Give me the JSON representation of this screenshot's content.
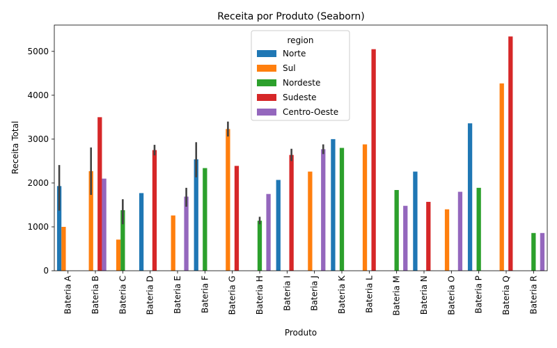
{
  "chart_data": {
    "type": "bar",
    "title": "Receita por Produto (Seaborn)",
    "xlabel": "Produto",
    "ylabel": "Receita Total",
    "ylim": [
      0,
      5600
    ],
    "yticks": [
      0,
      1000,
      2000,
      3000,
      4000,
      5000
    ],
    "grid": false,
    "legend_title": "region",
    "legend_position": "top-center",
    "categories": [
      "Bateria A",
      "Bateria B",
      "Bateria C",
      "Bateria D",
      "Bateria E",
      "Bateria F",
      "Bateria G",
      "Bateria H",
      "Bateria I",
      "Bateria J",
      "Bateria K",
      "Bateria L",
      "Bateria M",
      "Bateria N",
      "Bateria O",
      "Bateria P",
      "Bateria Q",
      "Bateria R"
    ],
    "series": [
      {
        "name": "Norte",
        "color": "#1f77b4",
        "values": [
          1930,
          null,
          null,
          1770,
          null,
          2540,
          null,
          null,
          2070,
          null,
          3000,
          null,
          null,
          2260,
          null,
          3360,
          null,
          null
        ],
        "err_low": [
          1370,
          null,
          null,
          null,
          null,
          2130,
          null,
          null,
          null,
          null,
          null,
          null,
          null,
          null,
          null,
          null,
          null,
          null
        ],
        "err_high": [
          2410,
          null,
          null,
          null,
          null,
          2930,
          null,
          null,
          null,
          null,
          null,
          null,
          null,
          null,
          null,
          null,
          null,
          null
        ]
      },
      {
        "name": "Sul",
        "color": "#ff7f0e",
        "values": [
          1000,
          2270,
          710,
          null,
          1260,
          null,
          3230,
          null,
          null,
          2260,
          null,
          2880,
          null,
          null,
          1400,
          null,
          4270,
          null
        ],
        "err_low": [
          null,
          1730,
          null,
          null,
          null,
          null,
          3060,
          null,
          null,
          null,
          null,
          null,
          null,
          null,
          null,
          null,
          null,
          null
        ],
        "err_high": [
          null,
          2810,
          null,
          null,
          null,
          null,
          3400,
          null,
          null,
          null,
          null,
          null,
          null,
          null,
          null,
          null,
          null,
          null
        ]
      },
      {
        "name": "Nordeste",
        "color": "#2ca02c",
        "values": [
          null,
          null,
          1380,
          null,
          null,
          2340,
          null,
          1140,
          null,
          null,
          2800,
          null,
          1840,
          null,
          null,
          1890,
          null,
          860
        ],
        "err_low": [
          null,
          null,
          1060,
          null,
          null,
          null,
          null,
          1060,
          null,
          null,
          null,
          null,
          null,
          null,
          null,
          null,
          null,
          null
        ],
        "err_high": [
          null,
          null,
          1630,
          null,
          null,
          null,
          null,
          1230,
          null,
          null,
          null,
          null,
          null,
          null,
          null,
          null,
          null,
          null
        ]
      },
      {
        "name": "Sudeste",
        "color": "#d62728",
        "values": [
          null,
          3500,
          null,
          2750,
          null,
          null,
          2390,
          null,
          2640,
          null,
          null,
          5050,
          null,
          1570,
          null,
          null,
          5340,
          null
        ],
        "err_low": [
          null,
          null,
          null,
          2630,
          null,
          null,
          null,
          null,
          2500,
          null,
          null,
          null,
          null,
          null,
          null,
          null,
          null,
          null
        ],
        "err_high": [
          null,
          null,
          null,
          2870,
          null,
          null,
          null,
          null,
          2780,
          null,
          null,
          null,
          null,
          null,
          null,
          null,
          null,
          null
        ]
      },
      {
        "name": "Centro-Oeste",
        "color": "#9467bd",
        "values": [
          null,
          2100,
          null,
          null,
          1690,
          null,
          null,
          1750,
          null,
          2770,
          null,
          null,
          1480,
          null,
          1800,
          null,
          null,
          860
        ],
        "err_low": [
          null,
          null,
          null,
          null,
          1460,
          null,
          null,
          null,
          null,
          2660,
          null,
          null,
          null,
          null,
          null,
          null,
          null,
          null
        ],
        "err_high": [
          null,
          null,
          null,
          null,
          1890,
          null,
          null,
          null,
          null,
          2880,
          null,
          null,
          null,
          null,
          null,
          null,
          null,
          null
        ]
      }
    ]
  }
}
